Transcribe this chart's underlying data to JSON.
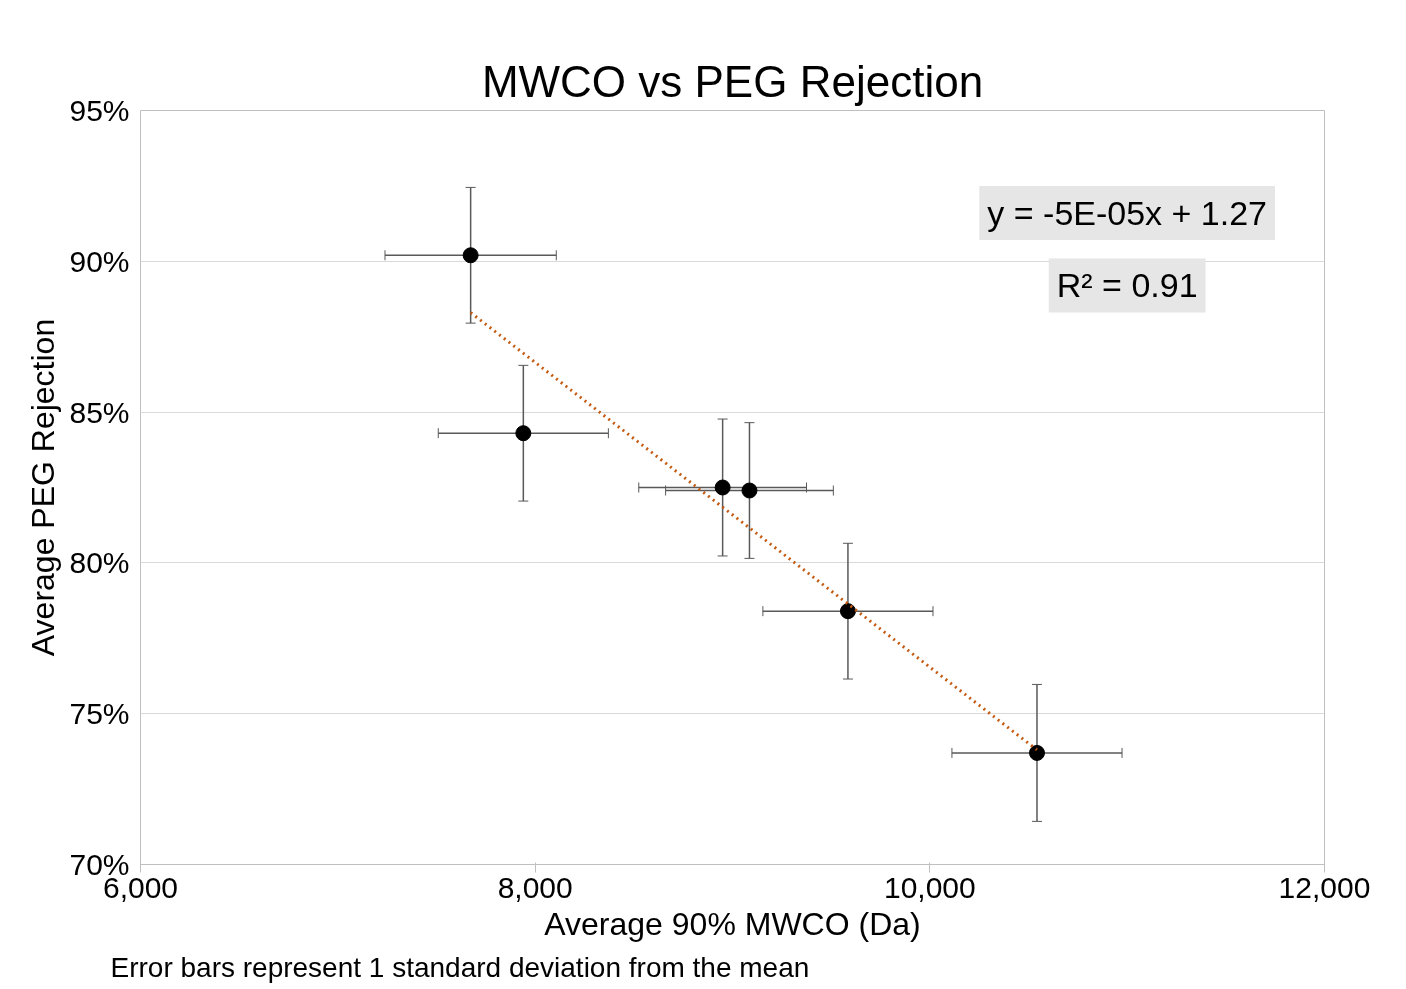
{
  "chart_data": {
    "type": "scatter",
    "title": "MWCO vs PEG Rejection",
    "xlabel": "Average 90% MWCO (Da)",
    "ylabel": "Average PEG Rejection",
    "series": [
      {
        "color": "#000000",
        "marker": "circle",
        "x": [
          7673,
          7940,
          8950,
          9086,
          9585,
          10543
        ],
        "values": [
          90.2,
          84.3,
          82.5,
          82.4,
          78.4,
          73.7
        ],
        "errors": [
          2.25,
          2.25,
          2.27,
          2.25,
          2.25,
          2.27
        ],
        "xerrors": [
          434,
          431,
          425,
          425,
          431,
          431
        ]
      },
      {
        "type": "line",
        "color": "#c55a11",
        "line_style": "dotted",
        "marker": "none",
        "x": [
          7673,
          10543
        ],
        "values": [
          88.3,
          73.8
        ]
      }
    ],
    "xlim": [
      6000,
      12000
    ],
    "xticks": [
      {
        "value": 6000,
        "label": "6,000"
      },
      {
        "value": 8000,
        "label": "8,000"
      },
      {
        "value": 10000,
        "label": "10,000"
      },
      {
        "value": 12000,
        "label": "12,000"
      }
    ],
    "ylim": [
      70,
      95
    ],
    "yticks": [
      {
        "value": 70,
        "label": "70%"
      },
      {
        "value": 75,
        "label": "75%"
      },
      {
        "value": 80,
        "label": "80%"
      },
      {
        "value": 85,
        "label": "85%"
      },
      {
        "value": 90,
        "label": "90%"
      },
      {
        "value": 95,
        "label": "95%"
      }
    ],
    "grid": "y",
    "annotations": [
      "y = -5E-05x + 1.27",
      "R² = 0.91",
      "Error bars represent 1 standard deviation from the mean"
    ]
  }
}
